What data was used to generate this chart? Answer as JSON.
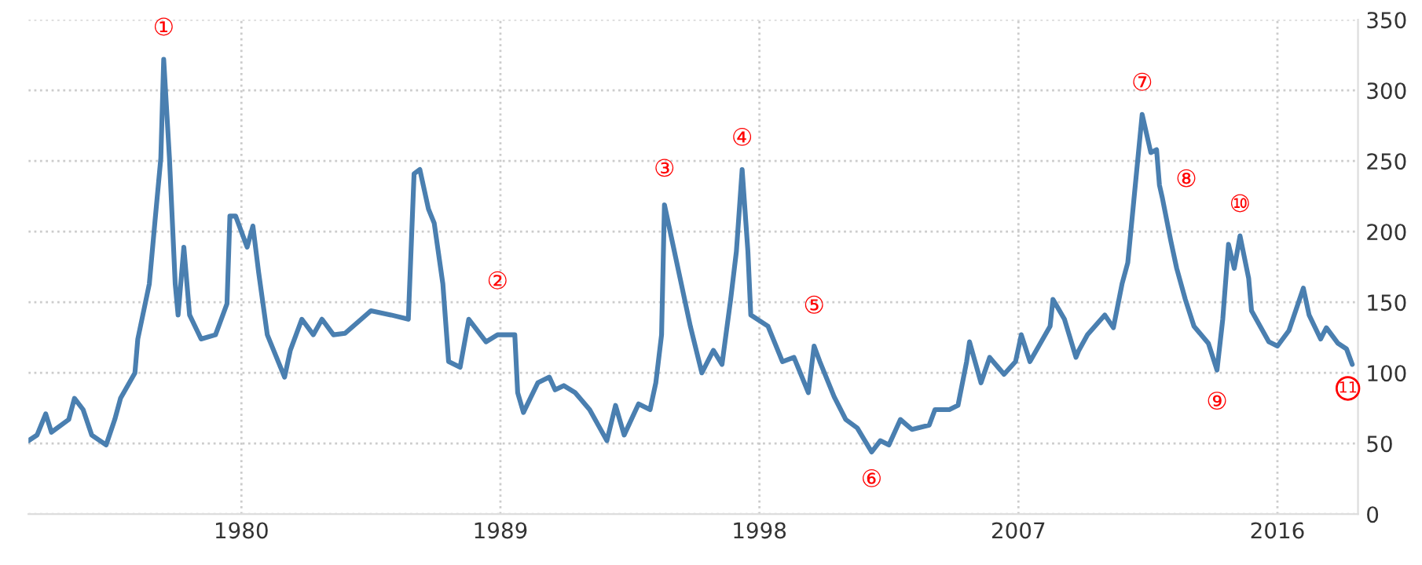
{
  "chart_data": {
    "type": "line",
    "x": [
      1972.6,
      1972.9,
      1973.2,
      1973.4,
      1974.0,
      1974.2,
      1974.5,
      1974.8,
      1975.3,
      1975.6,
      1975.8,
      1976.3,
      1976.4,
      1976.8,
      1977.0,
      1977.2,
      1977.3,
      1977.5,
      1977.7,
      1977.8,
      1978.0,
      1978.2,
      1978.6,
      1979.1,
      1979.5,
      1979.6,
      1979.8,
      1980.2,
      1980.4,
      1980.6,
      1980.9,
      1981.5,
      1981.7,
      1982.1,
      1982.5,
      1982.8,
      1983.2,
      1983.6,
      1984.5,
      1985.2,
      1985.8,
      1986.0,
      1986.2,
      1986.5,
      1986.7,
      1987.0,
      1987.2,
      1987.6,
      1987.9,
      1988.5,
      1988.9,
      1989.5,
      1989.6,
      1989.8,
      1990.3,
      1990.7,
      1990.9,
      1991.2,
      1991.6,
      1992.1,
      1992.7,
      1993.0,
      1993.3,
      1993.8,
      1994.2,
      1994.4,
      1994.6,
      1994.7,
      1995.6,
      1996.0,
      1996.4,
      1996.7,
      1997.0,
      1997.2,
      1997.4,
      1997.6,
      1997.7,
      1998.3,
      1998.8,
      1999.2,
      1999.7,
      1999.9,
      2000.1,
      2000.6,
      2001.0,
      2001.4,
      2001.9,
      2002.2,
      2002.5,
      2002.9,
      2003.3,
      2003.9,
      2004.1,
      2004.6,
      2004.9,
      2005.2,
      2005.3,
      2005.7,
      2006.0,
      2006.5,
      2006.9,
      2007.1,
      2007.4,
      2008.1,
      2008.2,
      2008.6,
      2009.0,
      2009.1,
      2009.4,
      2010.0,
      2010.3,
      2010.6,
      2010.8,
      2011.3,
      2011.6,
      2011.8,
      2011.9,
      2012.0,
      2012.3,
      2012.5,
      2012.8,
      2013.1,
      2013.6,
      2013.9,
      2014.1,
      2014.3,
      2014.5,
      2014.7,
      2015.0,
      2015.1,
      2015.7,
      2016.0,
      2016.4,
      2016.9,
      2017.1,
      2017.5,
      2017.7,
      2018.1,
      2018.4,
      2018.6
    ],
    "series": [
      {
        "color": "#4a7fb0",
        "values": [
          52,
          56,
          71,
          58,
          67,
          82,
          74,
          56,
          49,
          67,
          82,
          100,
          124,
          163,
          208,
          252,
          322,
          252,
          163,
          141,
          189,
          141,
          124,
          127,
          149,
          211,
          211,
          189,
          204,
          171,
          127,
          97,
          116,
          138,
          127,
          138,
          127,
          128,
          144,
          141,
          138,
          241,
          244,
          216,
          206,
          163,
          108,
          104,
          138,
          122,
          127,
          127,
          86,
          72,
          93,
          97,
          88,
          91,
          86,
          74,
          52,
          77,
          56,
          78,
          74,
          93,
          127,
          219,
          133,
          100,
          116,
          106,
          152,
          186,
          244,
          186,
          141,
          133,
          108,
          111,
          86,
          119,
          108,
          83,
          67,
          61,
          44,
          52,
          49,
          67,
          60,
          63,
          74,
          74,
          77,
          108,
          122,
          93,
          111,
          99,
          108,
          127,
          108,
          133,
          152,
          138,
          111,
          116,
          127,
          141,
          132,
          163,
          178,
          283,
          256,
          258,
          233,
          224,
          193,
          174,
          152,
          133,
          121,
          102,
          138,
          191,
          174,
          197,
          167,
          144,
          122,
          119,
          130,
          160,
          141,
          124,
          132,
          121,
          117,
          106
        ]
      }
    ],
    "xlim": [
      1972.6,
      2018.8
    ],
    "ylim": [
      0,
      350
    ],
    "xticks": [
      1980,
      1989,
      1998,
      2007,
      2016
    ],
    "yticks": [
      0,
      50,
      100,
      150,
      200,
      250,
      300,
      350
    ],
    "grid": true,
    "line_style": "solid",
    "marker": "none",
    "annotations": [
      {
        "text": "①",
        "x": 1977.3,
        "y": 322
      },
      {
        "text": "②",
        "x": 1988.9,
        "y": 127
      },
      {
        "text": "③",
        "x": 1994.7,
        "y": 219
      },
      {
        "text": "④",
        "x": 1997.4,
        "y": 244
      },
      {
        "text": "⑤",
        "x": 1999.9,
        "y": 119
      },
      {
        "text": "⑥",
        "x": 2001.9,
        "y": 44
      },
      {
        "text": "⑦",
        "x": 2011.3,
        "y": 283
      },
      {
        "text": "⑧",
        "x": 2012.0,
        "y": 224
      },
      {
        "text": "⑨",
        "x": 2013.9,
        "y": 102
      },
      {
        "text": "⑩",
        "x": 2014.7,
        "y": 197
      },
      {
        "text": "11",
        "x": 2018.6,
        "y": 106
      }
    ]
  }
}
